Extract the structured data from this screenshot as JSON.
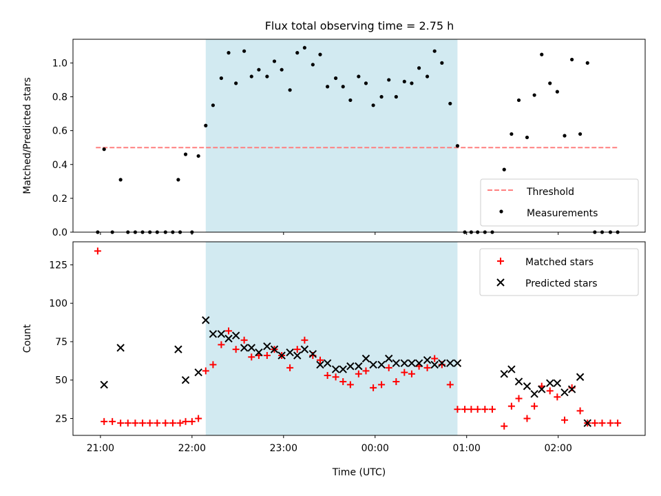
{
  "title": "Flux total observing time = 2.75 h",
  "colors": {
    "shade": "#add8e6",
    "threshold": "#ff7f7f",
    "matched": "#ff0000",
    "predicted": "#000000",
    "measure": "#000000"
  },
  "chart_data": [
    {
      "type": "scatter",
      "ylabel": "Matched/Predicted stars",
      "xlim": [
        20.7,
        26.95
      ],
      "ylim": [
        0,
        1.14
      ],
      "yticks": [
        0.0,
        0.2,
        0.4,
        0.6,
        0.8,
        1.0
      ],
      "ytick_labels": [
        "0.0",
        "0.2",
        "0.4",
        "0.6",
        "0.8",
        "1.0"
      ],
      "shaded_span": [
        22.15,
        24.9
      ],
      "threshold": {
        "name": "Threshold",
        "value": 0.5,
        "x_range": [
          20.95,
          26.65
        ]
      },
      "legend": {
        "placement": "lower right",
        "entries": [
          "Threshold",
          "Measurements"
        ]
      },
      "series": [
        {
          "name": "Measurements",
          "marker": "dot",
          "points": [
            [
              20.97,
              0.0
            ],
            [
              21.04,
              0.49
            ],
            [
              21.13,
              0.0
            ],
            [
              21.22,
              0.31
            ],
            [
              21.3,
              0.0
            ],
            [
              21.38,
              0.0
            ],
            [
              21.46,
              0.0
            ],
            [
              21.54,
              0.0
            ],
            [
              21.62,
              0.0
            ],
            [
              21.71,
              0.0
            ],
            [
              21.79,
              0.0
            ],
            [
              21.87,
              0.0
            ],
            [
              21.85,
              0.31
            ],
            [
              21.93,
              0.46
            ],
            [
              22.0,
              0.0
            ],
            [
              22.07,
              0.45
            ],
            [
              22.15,
              0.63
            ],
            [
              22.23,
              0.75
            ],
            [
              22.32,
              0.91
            ],
            [
              22.4,
              1.06
            ],
            [
              22.48,
              0.88
            ],
            [
              22.57,
              1.07
            ],
            [
              22.65,
              0.92
            ],
            [
              22.73,
              0.96
            ],
            [
              22.82,
              0.92
            ],
            [
              22.9,
              1.01
            ],
            [
              22.98,
              0.96
            ],
            [
              23.07,
              0.84
            ],
            [
              23.15,
              1.06
            ],
            [
              23.23,
              1.09
            ],
            [
              23.32,
              0.99
            ],
            [
              23.4,
              1.05
            ],
            [
              23.48,
              0.86
            ],
            [
              23.57,
              0.91
            ],
            [
              23.65,
              0.86
            ],
            [
              23.73,
              0.78
            ],
            [
              23.82,
              0.92
            ],
            [
              23.9,
              0.88
            ],
            [
              23.98,
              0.75
            ],
            [
              24.07,
              0.8
            ],
            [
              24.15,
              0.9
            ],
            [
              24.23,
              0.8
            ],
            [
              24.32,
              0.89
            ],
            [
              24.4,
              0.88
            ],
            [
              24.48,
              0.97
            ],
            [
              24.57,
              0.92
            ],
            [
              24.65,
              1.07
            ],
            [
              24.73,
              1.0
            ],
            [
              24.82,
              0.76
            ],
            [
              24.9,
              0.51
            ],
            [
              24.98,
              0.0
            ],
            [
              25.05,
              0.0
            ],
            [
              25.12,
              0.0
            ],
            [
              25.2,
              0.0
            ],
            [
              25.28,
              0.0
            ],
            [
              25.41,
              0.37
            ],
            [
              25.49,
              0.58
            ],
            [
              25.57,
              0.78
            ],
            [
              25.66,
              0.56
            ],
            [
              25.74,
              0.81
            ],
            [
              25.82,
              1.05
            ],
            [
              25.91,
              0.88
            ],
            [
              25.99,
              0.83
            ],
            [
              26.07,
              0.57
            ],
            [
              26.15,
              1.02
            ],
            [
              26.24,
              0.58
            ],
            [
              26.32,
              1.0
            ],
            [
              26.4,
              0.0
            ],
            [
              26.48,
              0.0
            ],
            [
              26.57,
              0.0
            ],
            [
              26.65,
              0.0
            ]
          ]
        }
      ]
    },
    {
      "type": "scatter",
      "ylabel": "Count",
      "xlabel": "Time (UTC)",
      "xlim": [
        20.7,
        26.95
      ],
      "ylim": [
        14,
        140
      ],
      "yticks": [
        25,
        50,
        75,
        100,
        125
      ],
      "ytick_labels": [
        "25",
        "50",
        "75",
        "100",
        "125"
      ],
      "xticks": [
        21,
        22,
        23,
        24,
        25,
        26
      ],
      "xtick_labels": [
        "21:00",
        "22:00",
        "23:00",
        "00:00",
        "01:00",
        "02:00"
      ],
      "shaded_span": [
        22.15,
        24.9
      ],
      "legend": {
        "placement": "upper right",
        "entries": [
          "Matched stars",
          "Predicted stars"
        ]
      },
      "series": [
        {
          "name": "Matched stars",
          "marker": "plus",
          "points": [
            [
              20.97,
              134
            ],
            [
              21.04,
              23
            ],
            [
              21.13,
              23
            ],
            [
              21.22,
              22
            ],
            [
              21.3,
              22
            ],
            [
              21.38,
              22
            ],
            [
              21.46,
              22
            ],
            [
              21.54,
              22
            ],
            [
              21.62,
              22
            ],
            [
              21.71,
              22
            ],
            [
              21.79,
              22
            ],
            [
              21.87,
              22
            ],
            [
              21.93,
              23
            ],
            [
              22.0,
              23
            ],
            [
              22.07,
              25
            ],
            [
              22.15,
              56
            ],
            [
              22.23,
              60
            ],
            [
              22.32,
              73
            ],
            [
              22.4,
              82
            ],
            [
              22.48,
              70
            ],
            [
              22.57,
              76
            ],
            [
              22.65,
              65
            ],
            [
              22.73,
              66
            ],
            [
              22.82,
              66
            ],
            [
              22.9,
              70
            ],
            [
              22.98,
              66
            ],
            [
              23.07,
              58
            ],
            [
              23.15,
              70
            ],
            [
              23.23,
              76
            ],
            [
              23.32,
              66
            ],
            [
              23.4,
              63
            ],
            [
              23.48,
              53
            ],
            [
              23.57,
              52
            ],
            [
              23.65,
              49
            ],
            [
              23.73,
              47
            ],
            [
              23.82,
              54
            ],
            [
              23.9,
              56
            ],
            [
              23.98,
              45
            ],
            [
              24.07,
              47
            ],
            [
              24.15,
              58
            ],
            [
              24.23,
              49
            ],
            [
              24.32,
              55
            ],
            [
              24.4,
              54
            ],
            [
              24.48,
              59
            ],
            [
              24.57,
              58
            ],
            [
              24.65,
              64
            ],
            [
              24.73,
              60
            ],
            [
              24.82,
              47
            ],
            [
              24.9,
              31
            ],
            [
              24.98,
              31
            ],
            [
              25.05,
              31
            ],
            [
              25.12,
              31
            ],
            [
              25.2,
              31
            ],
            [
              25.28,
              31
            ],
            [
              25.41,
              20
            ],
            [
              25.49,
              33
            ],
            [
              25.57,
              38
            ],
            [
              25.66,
              25
            ],
            [
              25.74,
              33
            ],
            [
              25.82,
              46
            ],
            [
              25.91,
              43
            ],
            [
              25.99,
              39
            ],
            [
              26.07,
              24
            ],
            [
              26.15,
              45
            ],
            [
              26.24,
              30
            ],
            [
              26.32,
              22
            ],
            [
              26.4,
              22
            ],
            [
              26.48,
              22
            ],
            [
              26.57,
              22
            ],
            [
              26.65,
              22
            ]
          ]
        },
        {
          "name": "Predicted stars",
          "marker": "x",
          "points": [
            [
              21.04,
              47
            ],
            [
              21.22,
              71
            ],
            [
              21.85,
              70
            ],
            [
              21.93,
              50
            ],
            [
              22.07,
              55
            ],
            [
              22.15,
              89
            ],
            [
              22.23,
              80
            ],
            [
              22.32,
              80
            ],
            [
              22.4,
              77
            ],
            [
              22.48,
              79
            ],
            [
              22.57,
              71
            ],
            [
              22.65,
              71
            ],
            [
              22.73,
              68
            ],
            [
              22.82,
              72
            ],
            [
              22.9,
              70
            ],
            [
              22.98,
              66
            ],
            [
              23.07,
              68
            ],
            [
              23.15,
              66
            ],
            [
              23.23,
              70
            ],
            [
              23.32,
              67
            ],
            [
              23.4,
              60
            ],
            [
              23.48,
              61
            ],
            [
              23.57,
              57
            ],
            [
              23.65,
              57
            ],
            [
              23.73,
              59
            ],
            [
              23.82,
              59
            ],
            [
              23.9,
              64
            ],
            [
              23.98,
              60
            ],
            [
              24.07,
              60
            ],
            [
              24.15,
              64
            ],
            [
              24.23,
              61
            ],
            [
              24.32,
              61
            ],
            [
              24.4,
              61
            ],
            [
              24.48,
              61
            ],
            [
              24.57,
              63
            ],
            [
              24.65,
              60
            ],
            [
              24.73,
              61
            ],
            [
              24.82,
              61
            ],
            [
              24.9,
              61
            ],
            [
              25.41,
              54
            ],
            [
              25.49,
              57
            ],
            [
              25.57,
              49
            ],
            [
              25.66,
              46
            ],
            [
              25.74,
              41
            ],
            [
              25.82,
              44
            ],
            [
              25.91,
              48
            ],
            [
              25.99,
              48
            ],
            [
              26.07,
              42
            ],
            [
              26.15,
              44
            ],
            [
              26.24,
              52
            ],
            [
              26.32,
              22
            ]
          ]
        }
      ]
    }
  ]
}
